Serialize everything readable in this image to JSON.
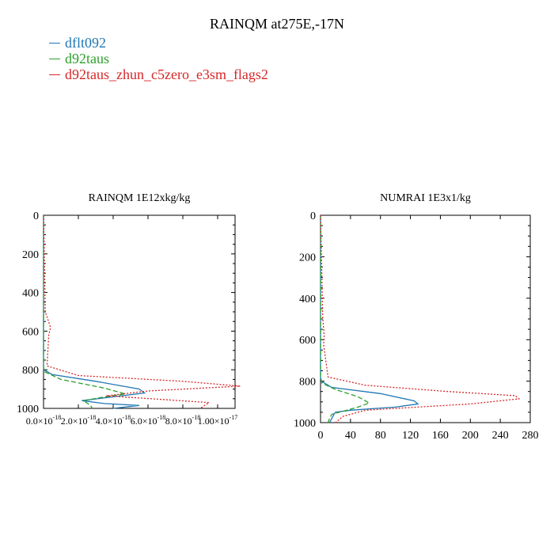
{
  "title": "RAINQM at275E,-17N",
  "colors": {
    "dflt092": "#1f77b4",
    "d92taus": "#2ca02c",
    "zhun": "#d62728"
  },
  "legend": [
    {
      "label": "dflt092",
      "color": "#1f77b4"
    },
    {
      "label": "d92taus",
      "color": "#2ca02c"
    },
    {
      "label": "d92taus_zhun_c5zero_e3sm_flags2",
      "color": "#d62728"
    }
  ],
  "chart_data": [
    {
      "type": "line",
      "title": "RAINQM  1E12xkg/kg",
      "xlim": [
        0,
        1.1e-17
      ],
      "ylim": [
        1000,
        0
      ],
      "xticks": [
        0,
        2e-18,
        4e-18,
        6e-18,
        8e-18,
        1e-17
      ],
      "xtick_labels": [
        "0.0×10",
        "2.0×10",
        "4.0×10",
        "6.0×10",
        "8.0×10",
        "1.00×10"
      ],
      "xtick_exponents": [
        "-18",
        "-18",
        "-18",
        "-18",
        "-18",
        "-17"
      ],
      "yticks": [
        0,
        200,
        400,
        600,
        800,
        1000
      ],
      "ytick_labels": [
        "0",
        "200",
        "400",
        "600",
        "800",
        "1000"
      ],
      "series": [
        {
          "name": "dflt092",
          "color": "#1f77b4",
          "dash": "solid",
          "x": [
            0,
            0,
            2e-20,
            5e-19,
            3e-18,
            5.5e-18,
            5.8e-18,
            4e-18,
            2.2e-18,
            3.5e-18,
            5.5e-18,
            4e-18
          ],
          "y": [
            0,
            780,
            800,
            825,
            860,
            900,
            920,
            940,
            960,
            975,
            985,
            1000
          ]
        },
        {
          "name": "d92taus",
          "color": "#2ca02c",
          "dash": "dashed",
          "x": [
            0,
            0,
            5e-20,
            1e-18,
            3.5e-18,
            4.7e-18,
            3.2e-18,
            2.3e-18,
            2.7e-18,
            2.8e-18
          ],
          "y": [
            0,
            780,
            810,
            850,
            895,
            925,
            945,
            960,
            985,
            1000
          ]
        },
        {
          "name": "d92taus_zhun_c5zero_e3sm_flags2",
          "color": "#d62728",
          "dash": "dotted",
          "x": [
            0,
            1e-19,
            4e-19,
            3e-19,
            2e-19,
            2e-18,
            8e-18,
            1.13e-17,
            6e-18,
            3.6e-18,
            7e-18,
            9.5e-18,
            9e-18
          ],
          "y": [
            0,
            500,
            580,
            620,
            780,
            830,
            860,
            885,
            910,
            935,
            955,
            970,
            1000
          ]
        }
      ]
    },
    {
      "type": "line",
      "title": "NUMRAI  1E3x1/kg",
      "xlim": [
        0,
        280
      ],
      "ylim": [
        1000,
        0
      ],
      "xticks": [
        0,
        40,
        80,
        120,
        160,
        200,
        240,
        280
      ],
      "xtick_labels": [
        "0",
        "40",
        "80",
        "120",
        "160",
        "200",
        "240",
        "280"
      ],
      "yticks": [
        0,
        200,
        400,
        600,
        800,
        1000
      ],
      "ytick_labels": [
        "0",
        "200",
        "400",
        "600",
        "800",
        "1000"
      ],
      "series": [
        {
          "name": "dflt092",
          "color": "#1f77b4",
          "dash": "solid",
          "x": [
            0,
            0,
            1,
            15,
            80,
            125,
            130,
            100,
            40,
            20,
            18,
            15,
            12
          ],
          "y": [
            0,
            780,
            800,
            830,
            860,
            895,
            910,
            925,
            940,
            950,
            960,
            980,
            1000
          ]
        },
        {
          "name": "d92taus",
          "color": "#2ca02c",
          "dash": "dashed",
          "x": [
            0,
            0,
            2,
            20,
            50,
            65,
            50,
            30,
            15,
            12,
            10
          ],
          "y": [
            0,
            780,
            810,
            840,
            875,
            905,
            925,
            945,
            960,
            980,
            1000
          ]
        },
        {
          "name": "d92taus_zhun_c5zero_e3sm_flags2",
          "color": "#d62728",
          "dash": "dotted",
          "x": [
            0,
            3,
            5,
            4,
            10,
            60,
            170,
            260,
            265,
            200,
            60,
            30,
            20
          ],
          "y": [
            0,
            500,
            580,
            620,
            780,
            820,
            850,
            870,
            885,
            910,
            940,
            970,
            1000
          ]
        }
      ]
    }
  ]
}
